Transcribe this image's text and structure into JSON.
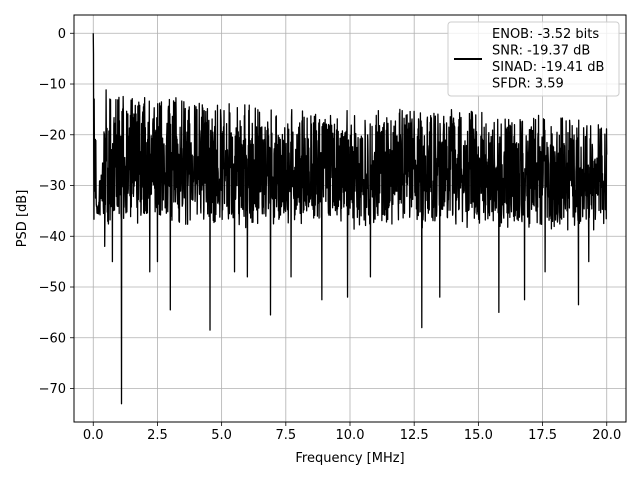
{
  "chart_data": {
    "type": "line",
    "title": "",
    "xlabel": "Frequency [MHz]",
    "ylabel": "PSD [dB]",
    "xlim": [
      -0.75,
      20.75
    ],
    "ylim": [
      -76.6,
      3.6
    ],
    "xticks": [
      0.0,
      2.5,
      5.0,
      7.5,
      10.0,
      12.5,
      15.0,
      17.5,
      20.0
    ],
    "xtick_labels": [
      "0.0",
      "2.5",
      "5.0",
      "7.5",
      "10.0",
      "12.5",
      "15.0",
      "17.5",
      "20.0"
    ],
    "yticks": [
      0,
      -10,
      -20,
      -30,
      -40,
      -50,
      -60,
      -70
    ],
    "ytick_labels": [
      "0",
      "−10",
      "−20",
      "−30",
      "−40",
      "−50",
      "−60",
      "−70"
    ],
    "grid": true,
    "legend": {
      "placement": "top-right",
      "entries": [
        "ENOB: -3.52 bits",
        "SNR: -19.37 dB",
        "SINAD: -19.41 dB",
        "SFDR: 3.59"
      ]
    },
    "series": [
      {
        "color": "#000000",
        "x_range": [
          0.0,
          20.0
        ],
        "band": [
          {
            "x": 0.0,
            "y": 0
          },
          {
            "x": 0.05,
            "y": -4
          },
          {
            "x": 0.15,
            "y": -35
          },
          {
            "x": 0.5,
            "y": -11
          },
          {
            "x": 1.0,
            "y": -12
          },
          {
            "x": 2.0,
            "y": -12
          },
          {
            "x": 4.0,
            "y": -13
          },
          {
            "x": 6.0,
            "y": -14
          },
          {
            "x": 8.0,
            "y": -15
          },
          {
            "x": 10.0,
            "y": -15
          },
          {
            "x": 12.0,
            "y": -15
          },
          {
            "x": 14.0,
            "y": -15
          },
          {
            "x": 16.0,
            "y": -16
          },
          {
            "x": 18.0,
            "y": -16
          },
          {
            "x": 20.0,
            "y": -17
          }
        ],
        "typical_floor": -37,
        "dips": [
          {
            "x": 0.45,
            "y": -42
          },
          {
            "x": 0.75,
            "y": -45
          },
          {
            "x": 1.1,
            "y": -73
          },
          {
            "x": 2.2,
            "y": -47
          },
          {
            "x": 2.5,
            "y": -45
          },
          {
            "x": 3.0,
            "y": -54.5
          },
          {
            "x": 4.55,
            "y": -58.5
          },
          {
            "x": 5.5,
            "y": -47
          },
          {
            "x": 6.0,
            "y": -48
          },
          {
            "x": 6.9,
            "y": -55.5
          },
          {
            "x": 7.7,
            "y": -48
          },
          {
            "x": 8.9,
            "y": -52.5
          },
          {
            "x": 9.9,
            "y": -52
          },
          {
            "x": 10.8,
            "y": -48
          },
          {
            "x": 12.8,
            "y": -58
          },
          {
            "x": 13.5,
            "y": -52
          },
          {
            "x": 15.8,
            "y": -55
          },
          {
            "x": 16.8,
            "y": -52.5
          },
          {
            "x": 17.6,
            "y": -47
          },
          {
            "x": 18.9,
            "y": -53.5
          },
          {
            "x": 19.3,
            "y": -45
          }
        ]
      }
    ]
  }
}
